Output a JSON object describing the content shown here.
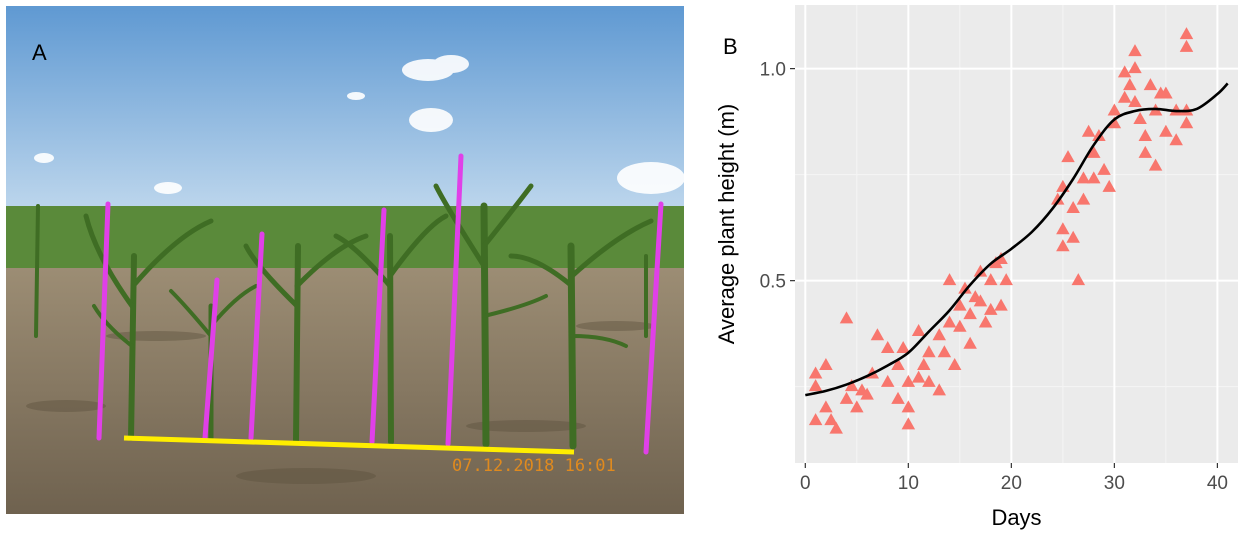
{
  "panel_a": {
    "label": "A",
    "timestamp": "07.12.2018  16:01"
  },
  "panel_b": {
    "label": "B"
  },
  "colors": {
    "sky_top": "#6aa2d8",
    "sky_bottom": "#c9def0",
    "soil": "#8a7a63",
    "plant_green": "#4f7d2e",
    "height_marker": "#e040e8",
    "ground_line": "#ffee00",
    "stamp": "#e08a1e",
    "panel_bg": "#ebebeb",
    "grid_major": "#ffffff",
    "points": "#f8766d",
    "smooth_line": "#000000"
  },
  "chart_data": {
    "type": "scatter",
    "marker": "triangle",
    "title": "",
    "xlabel": "Days",
    "ylabel": "Average plant height (m)",
    "xlim": [
      -1,
      42
    ],
    "ylim": [
      0.07,
      1.15
    ],
    "x_ticks": [
      0,
      10,
      20,
      30,
      40
    ],
    "y_ticks": [
      0.5,
      1.0
    ],
    "x_tick_labels": [
      "0",
      "10",
      "20",
      "30",
      "40"
    ],
    "y_tick_labels": [
      "0.5",
      "1.0"
    ],
    "grid": true,
    "series": [
      {
        "points": [
          [
            1,
            0.25
          ],
          [
            1,
            0.28
          ],
          [
            1,
            0.17
          ],
          [
            2,
            0.3
          ],
          [
            2,
            0.2
          ],
          [
            2.5,
            0.17
          ],
          [
            3,
            0.15
          ],
          [
            4,
            0.41
          ],
          [
            4,
            0.22
          ],
          [
            4.5,
            0.25
          ],
          [
            5,
            0.2
          ],
          [
            5.5,
            0.24
          ],
          [
            6,
            0.23
          ],
          [
            6.5,
            0.28
          ],
          [
            7,
            0.37
          ],
          [
            8,
            0.26
          ],
          [
            8,
            0.34
          ],
          [
            9,
            0.3
          ],
          [
            9,
            0.22
          ],
          [
            9.5,
            0.34
          ],
          [
            10,
            0.16
          ],
          [
            10,
            0.2
          ],
          [
            10,
            0.26
          ],
          [
            11,
            0.38
          ],
          [
            11,
            0.27
          ],
          [
            11.5,
            0.3
          ],
          [
            12,
            0.33
          ],
          [
            12,
            0.26
          ],
          [
            13,
            0.37
          ],
          [
            13,
            0.24
          ],
          [
            13.5,
            0.33
          ],
          [
            14,
            0.5
          ],
          [
            14,
            0.4
          ],
          [
            14.5,
            0.3
          ],
          [
            15,
            0.39
          ],
          [
            15,
            0.44
          ],
          [
            15.5,
            0.48
          ],
          [
            16,
            0.42
          ],
          [
            16,
            0.35
          ],
          [
            16.5,
            0.46
          ],
          [
            17,
            0.52
          ],
          [
            17,
            0.45
          ],
          [
            17.5,
            0.4
          ],
          [
            18,
            0.5
          ],
          [
            18,
            0.43
          ],
          [
            18.5,
            0.54
          ],
          [
            19,
            0.55
          ],
          [
            19,
            0.44
          ],
          [
            19.5,
            0.5
          ],
          [
            24.5,
            0.69
          ],
          [
            25,
            0.72
          ],
          [
            25,
            0.62
          ],
          [
            25,
            0.58
          ],
          [
            25.5,
            0.79
          ],
          [
            26,
            0.6
          ],
          [
            26,
            0.67
          ],
          [
            26.5,
            0.5
          ],
          [
            27,
            0.74
          ],
          [
            27,
            0.69
          ],
          [
            27.5,
            0.85
          ],
          [
            28,
            0.8
          ],
          [
            28,
            0.74
          ],
          [
            28.5,
            0.84
          ],
          [
            29,
            0.76
          ],
          [
            29.5,
            0.72
          ],
          [
            30,
            0.9
          ],
          [
            30,
            0.87
          ],
          [
            31,
            0.99
          ],
          [
            31,
            0.93
          ],
          [
            31.5,
            0.96
          ],
          [
            32,
            1.04
          ],
          [
            32,
            0.92
          ],
          [
            32,
            1.0
          ],
          [
            32.5,
            0.88
          ],
          [
            33,
            0.8
          ],
          [
            33,
            0.84
          ],
          [
            33.5,
            0.96
          ],
          [
            34,
            0.9
          ],
          [
            34,
            0.77
          ],
          [
            34.5,
            0.94
          ],
          [
            35,
            0.85
          ],
          [
            35,
            0.94
          ],
          [
            36,
            0.9
          ],
          [
            36,
            0.83
          ],
          [
            37,
            1.08
          ],
          [
            37,
            1.05
          ],
          [
            37,
            0.87
          ],
          [
            37,
            0.9
          ]
        ]
      }
    ],
    "smooth": [
      [
        0,
        0.23
      ],
      [
        2,
        0.24
      ],
      [
        4,
        0.255
      ],
      [
        6,
        0.275
      ],
      [
        8,
        0.3
      ],
      [
        10,
        0.33
      ],
      [
        12,
        0.38
      ],
      [
        14,
        0.43
      ],
      [
        16,
        0.49
      ],
      [
        18,
        0.54
      ],
      [
        20,
        0.575
      ],
      [
        22,
        0.615
      ],
      [
        24,
        0.67
      ],
      [
        26,
        0.74
      ],
      [
        28,
        0.82
      ],
      [
        30,
        0.88
      ],
      [
        32,
        0.9
      ],
      [
        34,
        0.905
      ],
      [
        36,
        0.9
      ],
      [
        38,
        0.905
      ],
      [
        40,
        0.94
      ],
      [
        41,
        0.965
      ]
    ]
  }
}
